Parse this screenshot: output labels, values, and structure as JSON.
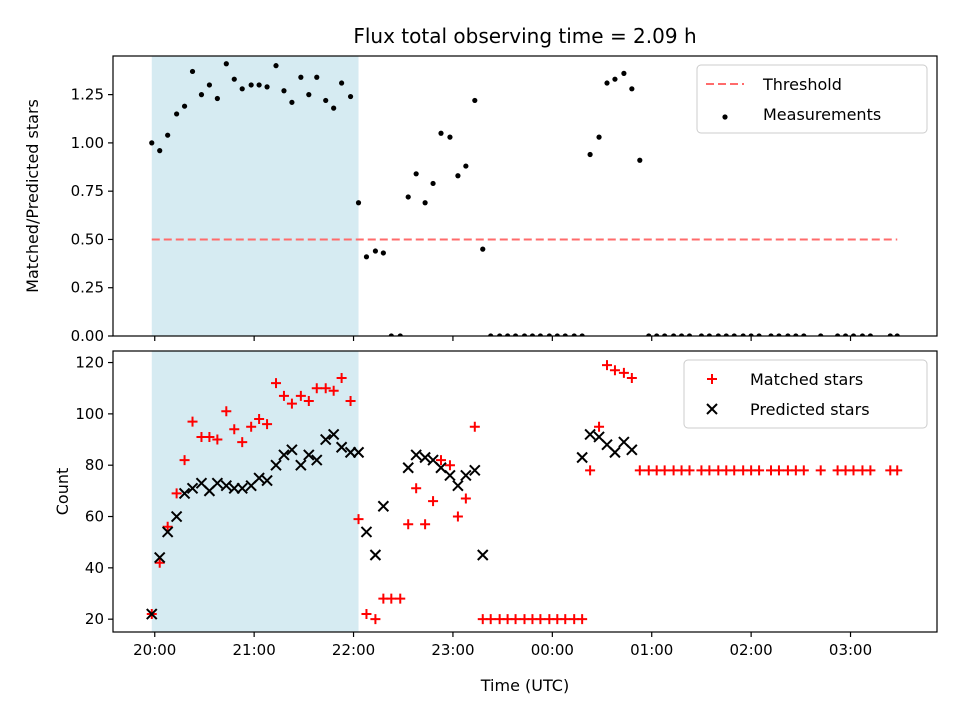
{
  "chart_data": [
    {
      "type": "scatter",
      "title": "Flux total observing time = 2.09 h",
      "xlabel": "",
      "ylabel": "Matched/Predicted stars",
      "ylim": [
        0,
        1.45
      ],
      "yticks": [
        0.0,
        0.25,
        0.5,
        0.75,
        1.0,
        1.25
      ],
      "ytick_labels": [
        "0.00",
        "0.25",
        "0.50",
        "0.75",
        "1.00",
        "1.25"
      ],
      "xlim": [
        -0.42,
        7.87
      ],
      "xticks": [
        0,
        1,
        2,
        3,
        4,
        5,
        6,
        7
      ],
      "xtick_labels": [
        "20:00",
        "21:00",
        "22:00",
        "23:00",
        "00:00",
        "01:00",
        "02:00",
        "03:00"
      ],
      "show_xtick_labels": false,
      "grid": false,
      "legend_position": "upper right",
      "shaded_span": {
        "x_start": -0.03,
        "x_end": 2.05,
        "color": "#add8e6"
      },
      "series": [
        {
          "name": "Threshold",
          "kind": "hline",
          "y": 0.5,
          "x_range": [
            -0.03,
            7.47
          ],
          "color": "#ff6b6b",
          "style": "dashed"
        },
        {
          "name": "Measurements",
          "kind": "points",
          "color": "#000000",
          "x": [
            -0.03,
            0.05,
            0.13,
            0.22,
            0.3,
            0.38,
            0.47,
            0.55,
            0.63,
            0.72,
            0.8,
            0.88,
            0.97,
            1.05,
            1.13,
            1.22,
            1.3,
            1.38,
            1.47,
            1.55,
            1.63,
            1.72,
            1.8,
            1.88,
            1.97,
            2.05,
            2.13,
            2.22,
            2.3,
            2.38,
            2.47,
            2.55,
            2.63,
            2.72,
            2.8,
            2.88,
            2.97,
            3.05,
            3.13,
            3.22,
            3.3,
            3.38,
            3.47,
            3.55,
            3.63,
            3.72,
            3.8,
            3.88,
            3.97,
            4.05,
            4.13,
            4.22,
            4.3,
            4.38,
            4.47,
            4.55,
            4.63,
            4.72,
            4.8,
            4.88,
            4.97,
            5.05,
            5.13,
            5.22,
            5.3,
            5.38,
            5.5,
            5.58,
            5.67,
            5.75,
            5.83,
            5.92,
            6.0,
            6.08,
            6.2,
            6.28,
            6.37,
            6.45,
            6.53,
            6.7,
            6.87,
            6.95,
            7.03,
            7.12,
            7.2,
            7.4,
            7.47
          ],
          "y": [
            1.0,
            0.96,
            1.04,
            1.15,
            1.19,
            1.37,
            1.25,
            1.3,
            1.23,
            1.41,
            1.33,
            1.28,
            1.3,
            1.3,
            1.29,
            1.4,
            1.27,
            1.21,
            1.34,
            1.25,
            1.34,
            1.22,
            1.18,
            1.31,
            1.24,
            0.69,
            0.41,
            0.44,
            0.43,
            0.0,
            0.0,
            0.72,
            0.84,
            0.69,
            0.79,
            1.05,
            1.03,
            0.83,
            0.88,
            1.22,
            0.45,
            0.0,
            0.0,
            0.0,
            0.0,
            0.0,
            0.0,
            0.0,
            0.0,
            0.0,
            0.0,
            0.0,
            0.0,
            0.94,
            1.03,
            1.31,
            1.33,
            1.36,
            1.28,
            0.91,
            0.0,
            0.0,
            0.0,
            0.0,
            0.0,
            0.0,
            0.0,
            0.0,
            0.0,
            0.0,
            0.0,
            0.0,
            0.0,
            0.0,
            0.0,
            0.0,
            0.0,
            0.0,
            0.0,
            0.0,
            0.0,
            0.0,
            0.0,
            0.0,
            0.0,
            0.0,
            0.0
          ]
        }
      ]
    },
    {
      "type": "scatter",
      "title": "",
      "xlabel": "Time (UTC)",
      "ylabel": "Count",
      "ylim": [
        15,
        124.5
      ],
      "yticks": [
        20,
        40,
        60,
        80,
        100,
        120
      ],
      "ytick_labels": [
        "20",
        "40",
        "60",
        "80",
        "100",
        "120"
      ],
      "xlim": [
        -0.42,
        7.87
      ],
      "xticks": [
        0,
        1,
        2,
        3,
        4,
        5,
        6,
        7
      ],
      "xtick_labels": [
        "20:00",
        "21:00",
        "22:00",
        "23:00",
        "00:00",
        "01:00",
        "02:00",
        "03:00"
      ],
      "show_xtick_labels": true,
      "grid": false,
      "legend_position": "upper right",
      "shaded_span": {
        "x_start": -0.03,
        "x_end": 2.05,
        "color": "#add8e6"
      },
      "series": [
        {
          "name": "Matched stars",
          "kind": "plus",
          "color": "#ff0000",
          "x": [
            -0.03,
            0.05,
            0.13,
            0.22,
            0.3,
            0.38,
            0.47,
            0.55,
            0.63,
            0.72,
            0.8,
            0.88,
            0.97,
            1.05,
            1.13,
            1.22,
            1.3,
            1.38,
            1.47,
            1.55,
            1.63,
            1.72,
            1.8,
            1.88,
            1.97,
            2.05,
            2.13,
            2.22,
            2.3,
            2.38,
            2.47,
            2.55,
            2.63,
            2.72,
            2.8,
            2.88,
            2.97,
            3.05,
            3.13,
            3.22,
            3.3,
            3.38,
            3.47,
            3.55,
            3.63,
            3.72,
            3.8,
            3.88,
            3.97,
            4.05,
            4.13,
            4.22,
            4.3,
            4.38,
            4.47,
            4.55,
            4.63,
            4.72,
            4.8,
            4.88,
            4.97,
            5.05,
            5.13,
            5.22,
            5.3,
            5.38,
            5.5,
            5.58,
            5.67,
            5.75,
            5.83,
            5.92,
            6.0,
            6.08,
            6.2,
            6.28,
            6.37,
            6.45,
            6.53,
            6.7,
            6.87,
            6.95,
            7.03,
            7.12,
            7.2,
            7.4,
            7.47
          ],
          "y": [
            22,
            42,
            56,
            69,
            82,
            97,
            91,
            91,
            90,
            101,
            94,
            89,
            95,
            98,
            96,
            112,
            107,
            104,
            107,
            105,
            110,
            110,
            109,
            114,
            105,
            59,
            22,
            20,
            28,
            28,
            28,
            57,
            71,
            57,
            66,
            82,
            80,
            60,
            67,
            95,
            20,
            20,
            20,
            20,
            20,
            20,
            20,
            20,
            20,
            20,
            20,
            20,
            20,
            78,
            95,
            119,
            117,
            116,
            114,
            78,
            78,
            78,
            78,
            78,
            78,
            78,
            78,
            78,
            78,
            78,
            78,
            78,
            78,
            78,
            78,
            78,
            78,
            78,
            78,
            78,
            78,
            78,
            78,
            78,
            78,
            78,
            78
          ]
        },
        {
          "name": "Predicted stars",
          "kind": "cross",
          "color": "#000000",
          "x": [
            -0.03,
            0.05,
            0.13,
            0.22,
            0.3,
            0.38,
            0.47,
            0.55,
            0.63,
            0.72,
            0.8,
            0.88,
            0.97,
            1.05,
            1.13,
            1.22,
            1.3,
            1.38,
            1.47,
            1.55,
            1.63,
            1.72,
            1.8,
            1.88,
            1.97,
            2.05,
            2.13,
            2.22,
            2.3,
            2.55,
            2.63,
            2.72,
            2.8,
            2.88,
            2.97,
            3.05,
            3.13,
            3.22,
            3.3,
            4.3,
            4.38,
            4.47,
            4.55,
            4.63,
            4.72,
            4.8
          ],
          "y": [
            22,
            44,
            54,
            60,
            69,
            71,
            73,
            70,
            73,
            72,
            71,
            71,
            72,
            75,
            74,
            80,
            84,
            86,
            80,
            84,
            82,
            90,
            92,
            87,
            85,
            85,
            54,
            45,
            64,
            79,
            84,
            83,
            82,
            79,
            76,
            72,
            76,
            78,
            45,
            83,
            92,
            91,
            88,
            85,
            89,
            86
          ]
        }
      ]
    }
  ]
}
